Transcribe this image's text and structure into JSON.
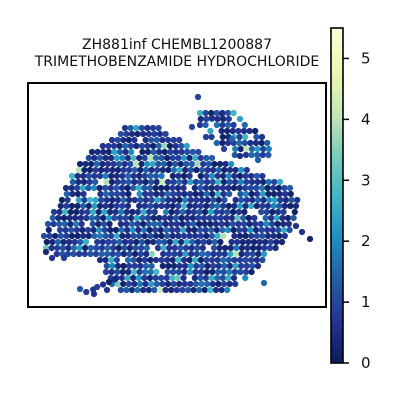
{
  "chart_data": {
    "type": "heatmap",
    "subtype": "hexbin",
    "title_lines": [
      "ZH881inf CHEMBL1200887",
      "TRIMETHOBENZAMIDE HYDROCHLORIDE"
    ],
    "xlabel": "",
    "ylabel": "",
    "axes_ticks": "none",
    "grid": false,
    "colorbar": {
      "colormap": "YlGnBu",
      "range": [
        0,
        5.5
      ],
      "ticks": [
        0,
        1,
        2,
        3,
        4,
        5
      ],
      "tick_labels": [
        "0",
        "1",
        "2",
        "3",
        "4",
        "5"
      ],
      "stops": [
        "#081d58",
        "#253494",
        "#225ea8",
        "#1d91c0",
        "#41b6c4",
        "#7fcdbb",
        "#c7e9b4",
        "#edf8b1",
        "#ffffd9"
      ]
    },
    "value_distribution": {
      "dominant_range": [
        0,
        1.2
      ],
      "occasional_range": [
        1.5,
        2.8
      ],
      "max_value": 4.3
    },
    "regions": [
      {
        "name": "main-cluster",
        "shape": "irregular-blob",
        "density": "dense"
      },
      {
        "name": "upper-right-lobe",
        "shape": "hook",
        "density": "medium"
      },
      {
        "name": "bottom-spur",
        "shape": "tail",
        "density": "sparse"
      }
    ]
  }
}
